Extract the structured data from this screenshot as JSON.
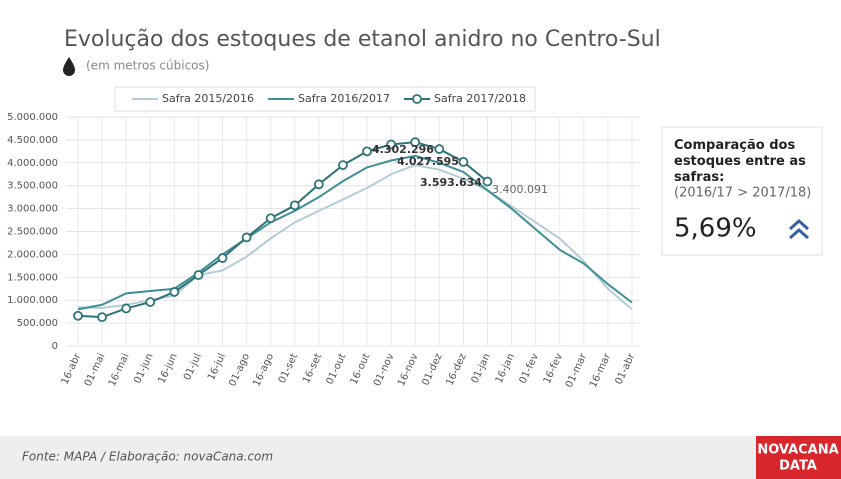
{
  "chart_data": {
    "type": "line",
    "title": "Evolução dos estoques de etanol anidro no Centro-Sul",
    "subtitle": "(em metros cúbicos)",
    "categories": [
      "16-abr",
      "01-mai",
      "16-mai",
      "01-jun",
      "16-jun",
      "01-jul",
      "16-jul",
      "01-ago",
      "16-ago",
      "01-set",
      "16-set",
      "01-out",
      "16-out",
      "01-nov",
      "16-nov",
      "01-dez",
      "16-dez",
      "01-jan",
      "16-jan",
      "01-fev",
      "16-fev",
      "01-mar",
      "16-mar",
      "01-abr"
    ],
    "series": [
      {
        "name": "Safra 2015/2016",
        "color": "#b3cdd6",
        "markers": false,
        "values": [
          850000,
          830000,
          900000,
          1000000,
          1100000,
          1550000,
          1650000,
          1950000,
          2350000,
          2700000,
          2950000,
          3200000,
          3450000,
          3750000,
          3950000,
          3850000,
          3650000,
          3400000,
          3050000,
          2700000,
          2350000,
          1850000,
          1250000,
          800000
        ]
      },
      {
        "name": "Safra 2016/2017",
        "color": "#3e8f95",
        "markers": false,
        "values": [
          800000,
          900000,
          1150000,
          1200000,
          1250000,
          1600000,
          2000000,
          2350000,
          2700000,
          2950000,
          3250000,
          3600000,
          3900000,
          4050000,
          4150000,
          4000000,
          3800000,
          3400000,
          3000000,
          2550000,
          2100000,
          1800000,
          1350000,
          950000
        ]
      },
      {
        "name": "Safra 2017/2018",
        "color": "#2f7378",
        "markers": true,
        "values": [
          660000,
          630000,
          820000,
          960000,
          1180000,
          1550000,
          1920000,
          2370000,
          2790000,
          3070000,
          3530000,
          3950000,
          4250000,
          4400000,
          4450000,
          4300000,
          4020000,
          3590000,
          null,
          null,
          null,
          null,
          null,
          null
        ]
      }
    ],
    "annotations": [
      "4.302.296",
      "4.027.595",
      "3.593.634",
      "3.400.091"
    ],
    "ylim": [
      0,
      5000000
    ],
    "yticks": [
      0,
      {
        "value": 500000,
        "label": "500.000"
      },
      {
        "value": 1000000,
        "label": "1.000.000"
      },
      {
        "value": 1500000,
        "label": "1.500.000"
      },
      {
        "value": 2000000,
        "label": "2.000.000"
      },
      {
        "value": 2500000,
        "label": "2.500.000"
      },
      {
        "value": 3000000,
        "label": "3.000.000"
      },
      {
        "value": 3500000,
        "label": "3.500.000"
      },
      {
        "value": 4000000,
        "label": "4.000.000"
      },
      {
        "value": 4500000,
        "label": "4.500.000"
      },
      {
        "value": 5000000,
        "label": "5.000.000"
      }
    ],
    "grid": true
  },
  "panel": {
    "heading": "Comparação dos estoques entre as safras:",
    "condition": "(2016/17 > 2017/18)",
    "value": "5,69%"
  },
  "footer": {
    "source": "Fonte: MAPA  / Elaboração: novaCana.com",
    "logo_top": "NOVACANA",
    "logo_bottom": "DATA"
  }
}
